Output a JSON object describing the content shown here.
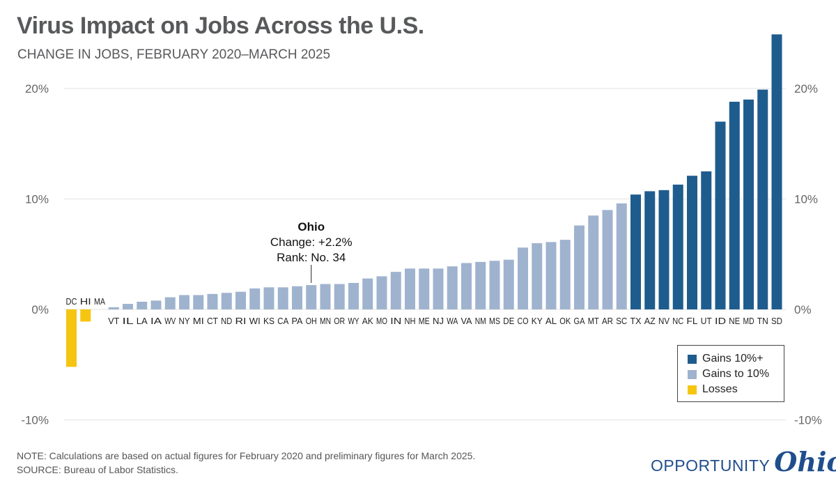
{
  "title": "Virus Impact on Jobs Across the U.S.",
  "subtitle": "CHANGE IN JOBS, FEBRUARY 2020–MARCH 2025",
  "note": "NOTE: Calculations are based on actual figures for February 2020 and preliminary figures for March 2025.",
  "source": "SOURCE: Bureau of Labor Statistics.",
  "logo": {
    "text": "OPPORTUNITY",
    "script": "Ohio"
  },
  "colors": {
    "gains_10_plus": "#1f5c8e",
    "gains_to_10": "#9fb3cf",
    "losses": "#f6c511",
    "grid": "#e3e3e3",
    "axis_text": "#666666"
  },
  "legend": {
    "items": [
      {
        "label": "Gains 10%+",
        "color": "#1f5c8e"
      },
      {
        "label": "Gains to 10%",
        "color": "#9fb3cf"
      },
      {
        "label": "Losses",
        "color": "#f6c511"
      }
    ]
  },
  "annotation": {
    "state": "OH",
    "title": "Ohio",
    "line1": "Change: +2.2%",
    "line2": "Rank: No. 34"
  },
  "chart_data": {
    "type": "bar",
    "title": "Virus Impact on Jobs Across the U.S.",
    "subtitle": "CHANGE IN JOBS, FEBRUARY 2020–MARCH 2025",
    "ylim": [
      -10,
      20
    ],
    "yticks": [
      20,
      10,
      0,
      -10
    ],
    "ytick_labels": [
      "20%",
      "10%",
      "0%",
      "-10%"
    ],
    "grid": true,
    "legend_position": "bottom-right",
    "categories": [
      "DC",
      "HI",
      "MA",
      "VT",
      "IL",
      "LA",
      "IA",
      "WV",
      "NY",
      "MI",
      "CT",
      "ND",
      "RI",
      "WI",
      "KS",
      "CA",
      "PA",
      "OH",
      "MN",
      "OR",
      "WY",
      "AK",
      "MO",
      "IN",
      "NH",
      "ME",
      "NJ",
      "WA",
      "VA",
      "NM",
      "MS",
      "DE",
      "CO",
      "KY",
      "AL",
      "OK",
      "GA",
      "MT",
      "AR",
      "SC",
      "TX",
      "AZ",
      "NV",
      "NC",
      "FL",
      "UT",
      "ID",
      "NE",
      "MD",
      "TN",
      "SD"
    ],
    "values": [
      -5.2,
      -1.1,
      0.0,
      0.2,
      0.5,
      0.7,
      0.8,
      1.1,
      1.3,
      1.3,
      1.4,
      1.5,
      1.6,
      1.9,
      2.0,
      2.0,
      2.1,
      2.2,
      2.3,
      2.3,
      2.4,
      2.8,
      3.0,
      3.4,
      3.7,
      3.7,
      3.7,
      3.9,
      4.2,
      4.3,
      4.4,
      4.5,
      5.6,
      6.0,
      6.1,
      6.3,
      7.6,
      8.5,
      9.0,
      9.6,
      10.4,
      10.7,
      10.8,
      11.3,
      12.1,
      12.5,
      17.0,
      18.8,
      19.0,
      19.9,
      24.9
    ],
    "category_groups": [
      "losses",
      "losses",
      "losses",
      "gains_to_10",
      "gains_to_10",
      "gains_to_10",
      "gains_to_10",
      "gains_to_10",
      "gains_to_10",
      "gains_to_10",
      "gains_to_10",
      "gains_to_10",
      "gains_to_10",
      "gains_to_10",
      "gains_to_10",
      "gains_to_10",
      "gains_to_10",
      "gains_to_10",
      "gains_to_10",
      "gains_to_10",
      "gains_to_10",
      "gains_to_10",
      "gains_to_10",
      "gains_to_10",
      "gains_to_10",
      "gains_to_10",
      "gains_to_10",
      "gains_to_10",
      "gains_to_10",
      "gains_to_10",
      "gains_to_10",
      "gains_to_10",
      "gains_to_10",
      "gains_to_10",
      "gains_to_10",
      "gains_to_10",
      "gains_to_10",
      "gains_to_10",
      "gains_to_10",
      "gains_to_10",
      "gains_10_plus",
      "gains_10_plus",
      "gains_10_plus",
      "gains_10_plus",
      "gains_10_plus",
      "gains_10_plus",
      "gains_10_plus",
      "gains_10_plus",
      "gains_10_plus",
      "gains_10_plus",
      "gains_10_plus"
    ]
  }
}
